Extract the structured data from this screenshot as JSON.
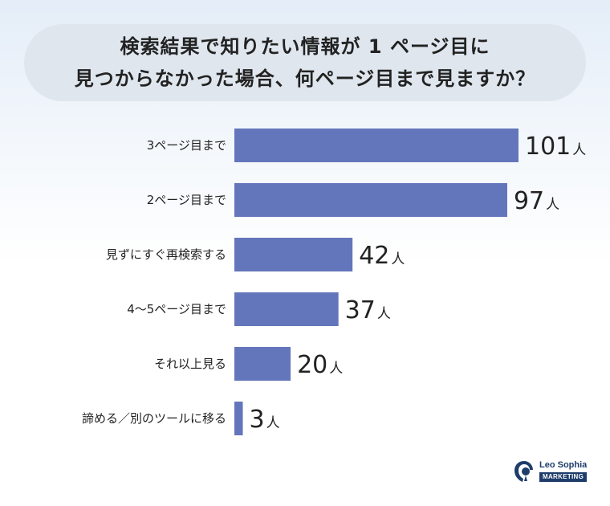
{
  "chart_data": {
    "type": "bar",
    "orientation": "horizontal",
    "title_lines": [
      "検索結果で知りたい情報が 1 ページ目に",
      "見つからなかった場合、何ページ目まで見ますか？"
    ],
    "categories": [
      "3ページ目まで",
      "2ページ目まで",
      "見ずにすぐ再検索する",
      "4〜5ページ目まで",
      "それ以上見る",
      "諦める／別のツールに移る"
    ],
    "values": [
      101,
      97,
      42,
      37,
      20,
      3
    ],
    "value_labels": [
      "101",
      "97",
      "42",
      "37",
      "20",
      "3"
    ],
    "unit": "人",
    "xlim": [
      0,
      101
    ],
    "grid": false,
    "legend": "none",
    "bar_color": "#6476bb"
  },
  "logo": {
    "name": "Leo Sophia",
    "tagline": "MARKETING"
  },
  "colors": {
    "title_bg": "#dfe6ee",
    "text": "#222222",
    "brand": "#1e3d6b"
  }
}
